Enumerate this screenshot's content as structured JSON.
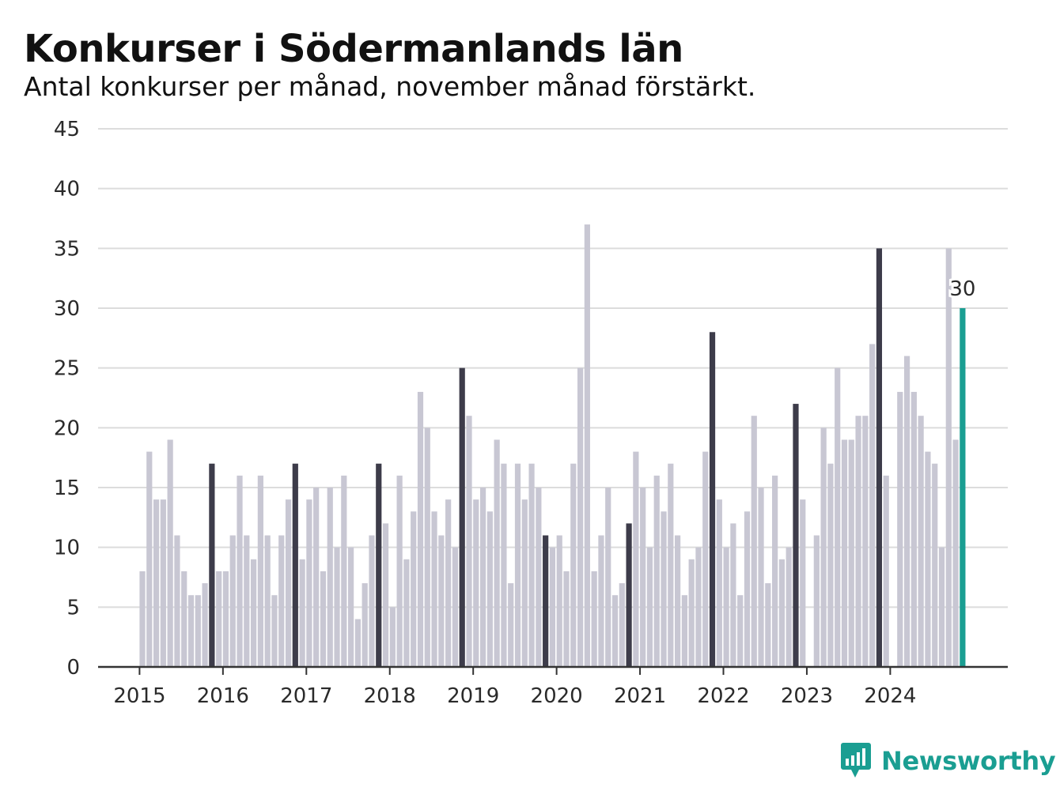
{
  "header": {
    "title": "Konkurser i Södermanlands län",
    "subtitle": "Antal konkurser per månad, november månad förstärkt."
  },
  "brand": {
    "name": "Newsworthy",
    "color": "#1a9e92"
  },
  "colors": {
    "regular": "#c8c7d3",
    "november": "#3d3c4a",
    "current": "#1a9e92",
    "grid": "#dcdcdc",
    "axis": "#333333"
  },
  "chart_data": {
    "type": "bar",
    "title": "Konkurser i Södermanlands län",
    "subtitle": "Antal konkurser per månad, november månad förstärkt.",
    "xlabel": "",
    "ylabel": "",
    "ylim": [
      0,
      45
    ],
    "yticks": [
      0,
      5,
      10,
      15,
      20,
      25,
      30,
      35,
      40,
      45
    ],
    "xticks": [
      "2015",
      "2016",
      "2017",
      "2018",
      "2019",
      "2020",
      "2021",
      "2022",
      "2023",
      "2024"
    ],
    "grid": true,
    "legend": "none",
    "start": "2015-01",
    "highlight": {
      "november": true,
      "last_label": "30"
    },
    "values": [
      8,
      18,
      14,
      14,
      19,
      11,
      8,
      6,
      6,
      7,
      17,
      8,
      8,
      11,
      16,
      11,
      9,
      16,
      11,
      6,
      11,
      14,
      17,
      9,
      14,
      15,
      8,
      15,
      10,
      16,
      10,
      4,
      7,
      11,
      17,
      12,
      5,
      16,
      9,
      13,
      23,
      20,
      13,
      11,
      14,
      10,
      25,
      21,
      14,
      15,
      13,
      19,
      17,
      7,
      17,
      14,
      17,
      15,
      11,
      10,
      11,
      8,
      17,
      25,
      37,
      8,
      11,
      15,
      6,
      7,
      12,
      18,
      15,
      10,
      16,
      13,
      17,
      11,
      6,
      9,
      10,
      18,
      28,
      14,
      10,
      12,
      6,
      13,
      21,
      15,
      7,
      16,
      9,
      10,
      22,
      14,
      0,
      11,
      20,
      17,
      25,
      19,
      19,
      21,
      21,
      27,
      35,
      16,
      0,
      23,
      26,
      23,
      21,
      18,
      17,
      10,
      35,
      19,
      30
    ]
  }
}
